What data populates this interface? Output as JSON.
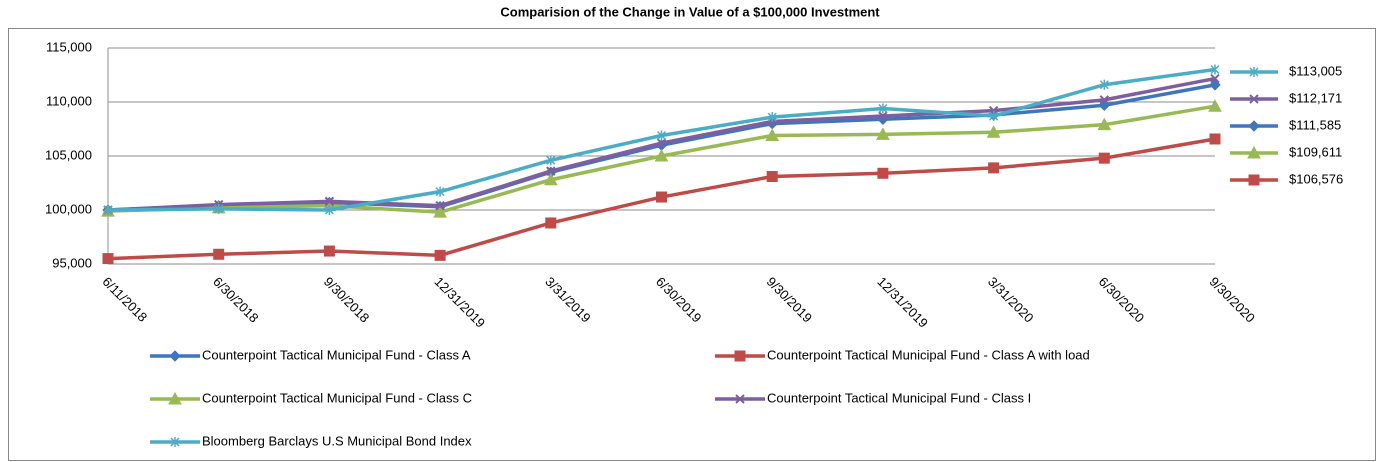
{
  "chart_data": {
    "type": "line",
    "title": "Comparision of the Change in Value of a $100,000 Investment",
    "categories": [
      "6/11/2018",
      "6/30/2018",
      "9/30/2018",
      "12/31/2019",
      "3/31/2019",
      "6/30/2019",
      "9/30/2019",
      "12/31/2019",
      "3/31/2020",
      "6/30/2020",
      "9/30/2020"
    ],
    "ylim": [
      95000,
      115000
    ],
    "yticks": [
      {
        "value": 95000,
        "label": "95,000"
      },
      {
        "value": 100000,
        "label": "100,000"
      },
      {
        "value": 105000,
        "label": "105,000"
      },
      {
        "value": 110000,
        "label": "110,000"
      },
      {
        "value": 115000,
        "label": "115,000"
      }
    ],
    "grid": true,
    "series": [
      {
        "name": "Counterpoint Tactical Municipal Fund - Class A",
        "color": "#3e76be",
        "marker": "diamond",
        "values": [
          100000,
          100400,
          100700,
          100300,
          103500,
          106000,
          108000,
          108400,
          108800,
          109700,
          111585
        ],
        "end_label": "$111,585"
      },
      {
        "name": "Counterpoint Tactical Municipal Fund - Class A with load",
        "color": "#be4b48",
        "marker": "square",
        "values": [
          95500,
          95900,
          96200,
          95800,
          98800,
          101200,
          103100,
          103400,
          103900,
          104800,
          106576
        ],
        "end_label": "$106,576"
      },
      {
        "name": "Counterpoint Tactical Municipal Fund - Class C",
        "color": "#98b954",
        "marker": "triangle",
        "values": [
          99900,
          100200,
          100400,
          99800,
          102800,
          105000,
          106900,
          107000,
          107200,
          107900,
          109611
        ],
        "end_label": "$109,611"
      },
      {
        "name": "Counterpoint Tactical Municipal Fund - Class I",
        "color": "#7d5fa0",
        "marker": "x",
        "values": [
          100000,
          100500,
          100800,
          100400,
          103600,
          106200,
          108200,
          108700,
          109200,
          110200,
          112171
        ],
        "end_label": "$112,171"
      },
      {
        "name": "Bloomberg Barclays U.S Municipal Bond Index",
        "color": "#4bacc6",
        "marker": "star",
        "values": [
          100000,
          100100,
          100000,
          101700,
          104600,
          106900,
          108600,
          109400,
          108700,
          111600,
          113005
        ],
        "end_label": "$113,005"
      }
    ]
  }
}
